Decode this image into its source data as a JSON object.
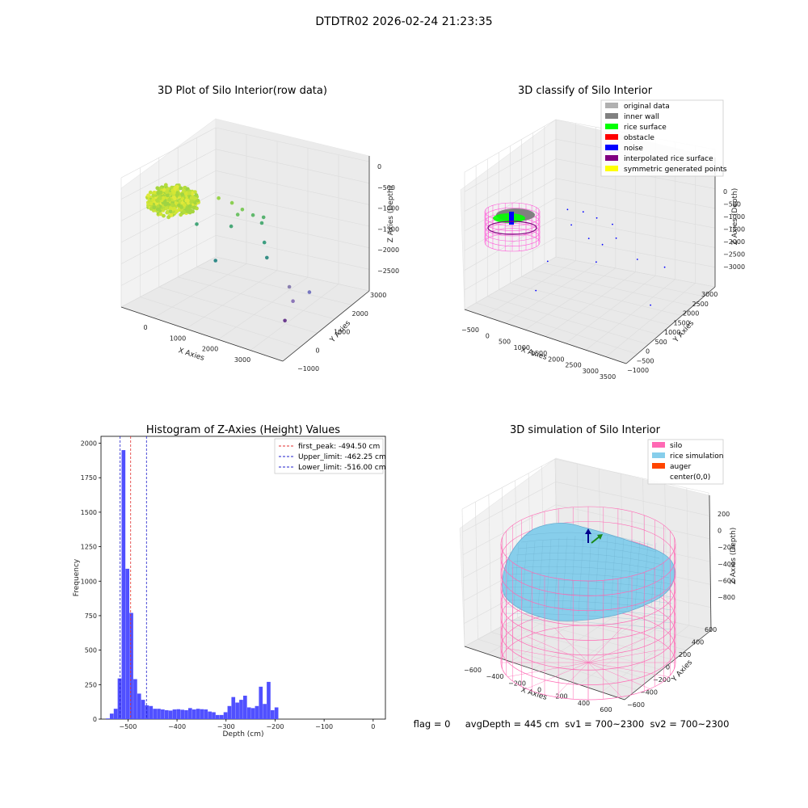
{
  "figure": {
    "suptitle": "DTDTR02 2026-02-24 21:23:35",
    "footer": "flag = 0     avgDepth = 445 cm  sv1 = 700~2300  sv2 = 700~2300"
  },
  "chart_data": [
    {
      "type": "scatter",
      "title": "3D Plot of Silo Interior(row data)",
      "xlabel": "X Axies",
      "ylabel": "Y Axies",
      "zlabel": "Z Axies (Depth)",
      "x_ticks": [
        "0",
        "1000",
        "2000",
        "3000"
      ],
      "y_ticks": [
        "−1000",
        "0",
        "1000",
        "2000",
        "3000"
      ],
      "z_ticks": [
        "0",
        "−500",
        "−1000",
        "−1500",
        "−2000",
        "−2500"
      ],
      "xlim": [
        -500,
        3800
      ],
      "ylim": [
        -1000,
        3300
      ],
      "zlim": [
        -2800,
        200
      ],
      "cluster": {
        "x_center": 300,
        "y_center": 300,
        "z_top": -300,
        "z_bottom": -700,
        "color": "#b8dc3a"
      },
      "points": [
        {
          "x": 1050,
          "y": 950,
          "z": -560,
          "color": "#9bd54a"
        },
        {
          "x": 1350,
          "y": 1050,
          "z": -620,
          "color": "#8ccf54"
        },
        {
          "x": 1600,
          "y": 1100,
          "z": -720,
          "color": "#7ec95c"
        },
        {
          "x": 1450,
          "y": 1150,
          "z": -900,
          "color": "#6fc266"
        },
        {
          "x": 1750,
          "y": 1350,
          "z": -900,
          "color": "#61b96d"
        },
        {
          "x": 1950,
          "y": 1500,
          "z": -950,
          "color": "#58b270"
        },
        {
          "x": 1850,
          "y": 1600,
          "z": -1150,
          "color": "#4fac76"
        },
        {
          "x": 1250,
          "y": 1200,
          "z": -1250,
          "color": "#4aa878"
        },
        {
          "x": 600,
          "y": 700,
          "z": -1200,
          "color": "#44a67a"
        },
        {
          "x": 2000,
          "y": 1450,
          "z": -1500,
          "color": "#3c9e80"
        },
        {
          "x": 2200,
          "y": 1200,
          "z": -1700,
          "color": "#378f86"
        },
        {
          "x": 1100,
          "y": 700,
          "z": -1900,
          "color": "#2f8a88"
        },
        {
          "x": 2850,
          "y": 1100,
          "z": -2150,
          "color": "#8a7fb0"
        },
        {
          "x": 3250,
          "y": 1350,
          "z": -2250,
          "color": "#7777c0"
        },
        {
          "x": 3000,
          "y": 1000,
          "z": -2400,
          "color": "#8c76b8"
        },
        {
          "x": 3000,
          "y": 600,
          "z": -2700,
          "color": "#6b3c8e"
        }
      ]
    },
    {
      "type": "scatter",
      "title": "3D classify of Silo Interior",
      "xlabel": "X Axies",
      "ylabel": "Y Axies",
      "zlabel": "Z Axies (Depth)",
      "x_ticks": [
        "−500",
        "0",
        "500",
        "1000",
        "1500",
        "2000",
        "2500",
        "3000",
        "3500"
      ],
      "y_ticks": [
        "−1000",
        "−500",
        "0",
        "500",
        "1000",
        "1500",
        "2000",
        "2500",
        "3000"
      ],
      "z_ticks": [
        "0",
        "−500",
        "−1000",
        "−1500",
        "−2000",
        "−2500",
        "−3000"
      ],
      "legend": [
        {
          "label": "original data",
          "color": "#b0b0b0"
        },
        {
          "label": "inner wall",
          "color": "#808080"
        },
        {
          "label": "rice surface",
          "color": "#00ff00"
        },
        {
          "label": "obstacle",
          "color": "#ff0000"
        },
        {
          "label": "noise",
          "color": "#0000ff"
        },
        {
          "label": "interpolated rice surface",
          "color": "#800080"
        },
        {
          "label": "symmetric generated points",
          "color": "#ffff00"
        }
      ],
      "legend_placement": "top-right",
      "noise_points": [
        {
          "x": 1000,
          "y": 900,
          "z": -1100
        },
        {
          "x": 1300,
          "y": 1100,
          "z": -1150
        },
        {
          "x": 1600,
          "y": 1200,
          "z": -1250
        },
        {
          "x": 1900,
          "y": 1400,
          "z": -1400
        },
        {
          "x": 1100,
          "y": 900,
          "z": -1450
        },
        {
          "x": 1500,
          "y": 1000,
          "z": -1700
        },
        {
          "x": 1800,
          "y": 1100,
          "z": -1800
        },
        {
          "x": 2050,
          "y": 1300,
          "z": -1650
        },
        {
          "x": 1800,
          "y": 800,
          "z": -2100
        },
        {
          "x": 700,
          "y": 500,
          "z": -2300
        },
        {
          "x": 2600,
          "y": 1300,
          "z": -2000
        },
        {
          "x": 3150,
          "y": 1600,
          "z": -2150
        },
        {
          "x": 3050,
          "y": 1100,
          "z": -2900
        },
        {
          "x": 500,
          "y": 300,
          "z": -3000
        }
      ]
    },
    {
      "type": "bar",
      "title": "Histogram of Z-Axies (Height) Values",
      "xlabel": "Depth (cm)",
      "ylabel": "Frequency",
      "xlim": [
        -555,
        25
      ],
      "ylim": [
        0,
        2050
      ],
      "x_ticks": [
        -500,
        -400,
        -300,
        -200,
        -100,
        0
      ],
      "y_ticks": [
        0,
        250,
        500,
        750,
        1000,
        1250,
        1500,
        1750,
        2000
      ],
      "bin_start": -545,
      "bin_width": 8,
      "bar_color": "#5050ff",
      "values": [
        5,
        40,
        75,
        295,
        1950,
        1090,
        770,
        290,
        185,
        140,
        100,
        95,
        75,
        75,
        70,
        65,
        62,
        70,
        72,
        68,
        65,
        80,
        70,
        75,
        72,
        70,
        55,
        50,
        30,
        30,
        50,
        95,
        160,
        120,
        140,
        170,
        85,
        80,
        95,
        235,
        110,
        270,
        65,
        85
      ],
      "lines": [
        {
          "label": "first_peak: -494.50 cm",
          "x": -494.5,
          "color": "#e03030"
        },
        {
          "label": "Upper_limit: -462.25 cm",
          "x": -462.25,
          "color": "#2020cc"
        },
        {
          "label": "Lower_limit: -516.00 cm",
          "x": -516.0,
          "color": "#2020cc"
        }
      ],
      "legend_placement": "top-right"
    },
    {
      "type": "area",
      "title": "3D simulation of Silo Interior",
      "xlabel": "X Axies",
      "ylabel": "Y Axies",
      "zlabel": "Z Axies (Depth)",
      "x_ticks": [
        "−600",
        "−400",
        "−200",
        "0",
        "200",
        "400",
        "600"
      ],
      "y_ticks": [
        "−600",
        "−400",
        "−200",
        "0",
        "200",
        "400",
        "600"
      ],
      "z_ticks": [
        "200",
        "0",
        "−200",
        "−400",
        "−600",
        "−800"
      ],
      "legend": [
        {
          "label": "silo",
          "color": "#ff69b4"
        },
        {
          "label": "rice simulation",
          "color": "#87ceeb"
        },
        {
          "label": "auger",
          "color": "#ff4500"
        },
        {
          "label": "center(0,0)",
          "color": ""
        }
      ],
      "legend_placement": "top-right"
    }
  ]
}
